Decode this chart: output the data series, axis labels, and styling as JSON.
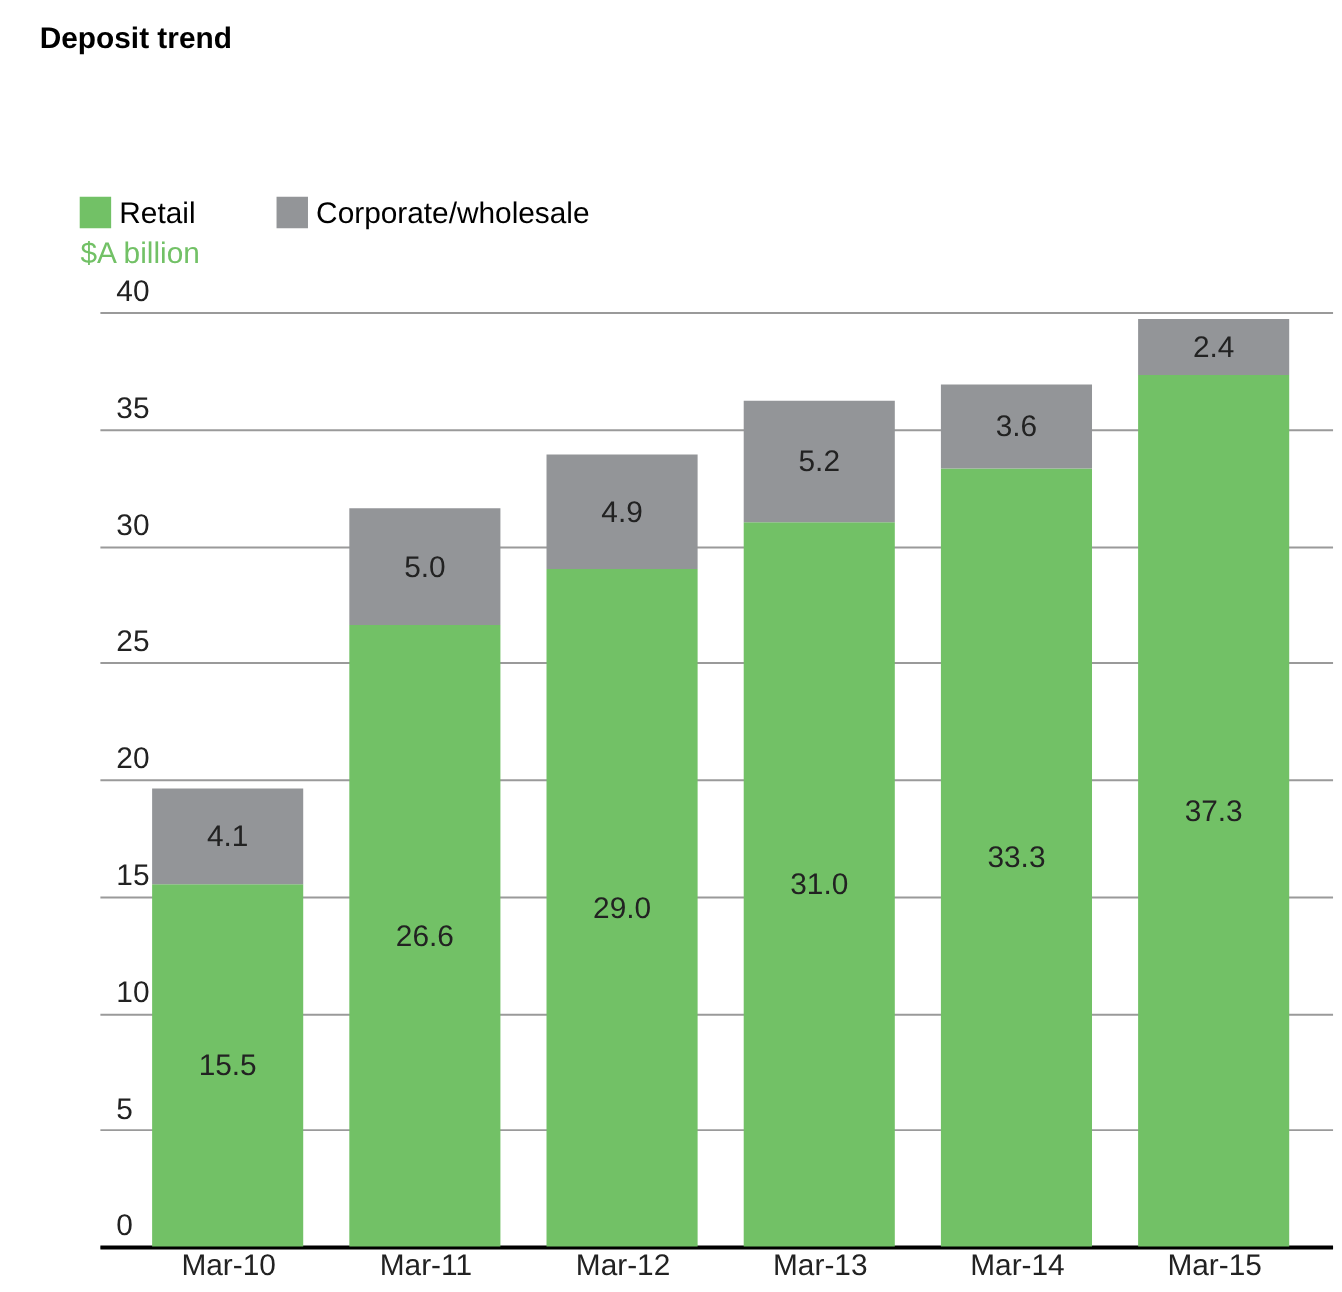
{
  "chart_data": {
    "type": "bar",
    "title": "Deposit trend",
    "ylabel": "$A billion",
    "categories": [
      "Mar-10",
      "Mar-11",
      "Mar-12",
      "Mar-13",
      "Mar-14",
      "Mar-15"
    ],
    "series": [
      {
        "name": "Retail",
        "color": "#72c166",
        "values": [
          15.5,
          26.6,
          29.0,
          31.0,
          33.3,
          37.3
        ],
        "value_labels": [
          "15.5",
          "26.6",
          "29.0",
          "31.0",
          "33.3",
          "37.3"
        ]
      },
      {
        "name": "Corporate/wholesale",
        "color": "#939598",
        "values": [
          4.1,
          5.0,
          4.9,
          5.2,
          3.6,
          2.4
        ],
        "value_labels": [
          "4.1",
          "5.0",
          "4.9",
          "5.2",
          "3.6",
          "2.4"
        ]
      }
    ],
    "stacked": true,
    "ylim": [
      0,
      40
    ],
    "yticks": [
      0,
      5,
      10,
      15,
      20,
      25,
      30,
      35,
      40
    ],
    "grid": "y",
    "legend": "top left"
  }
}
